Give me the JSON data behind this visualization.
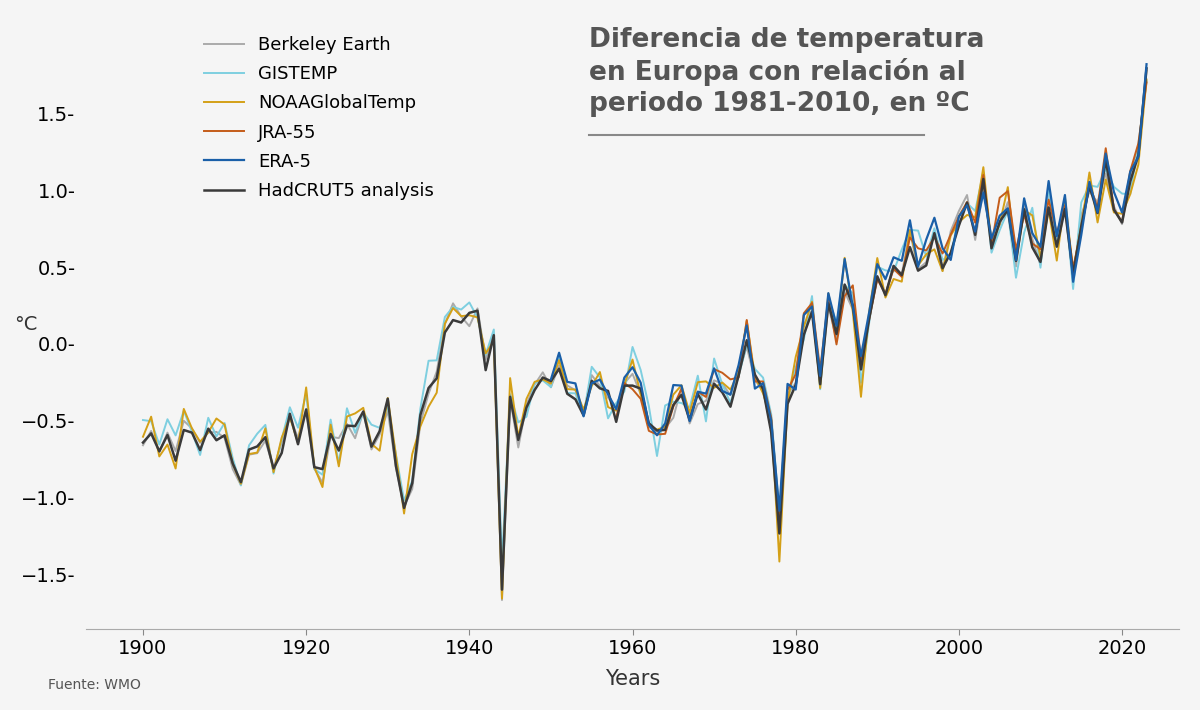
{
  "title_line1": "Diferencia de temperatura",
  "title_line2": "en Europa con relación al",
  "title_line3": "periodo 1981-2010, en ºC",
  "ylabel": "°C",
  "xlabel": "Years",
  "footnote": "Fuente: WMO",
  "ylim": [
    -1.85,
    2.1
  ],
  "xlim": [
    1893,
    2027
  ],
  "yticks": [
    -1.5,
    -1.0,
    -0.5,
    0.0,
    0.5,
    1.0,
    1.5
  ],
  "xticks": [
    1900,
    1920,
    1940,
    1960,
    1980,
    2000,
    2020
  ],
  "series": {
    "HadCRUT5 analysis": {
      "color": "#3a3a3a",
      "lw": 1.8,
      "zorder": 6
    },
    "NOAAGlobalTemp": {
      "color": "#d4a017",
      "lw": 1.4,
      "zorder": 5
    },
    "GISTEMP": {
      "color": "#7ecfe0",
      "lw": 1.4,
      "zorder": 4
    },
    "Berkeley Earth": {
      "color": "#aaaaaa",
      "lw": 1.4,
      "zorder": 3
    },
    "ERA-5": {
      "color": "#1a5fa8",
      "lw": 1.6,
      "zorder": 7
    },
    "JRA-55": {
      "color": "#c45c1a",
      "lw": 1.4,
      "zorder": 5
    }
  },
  "background_color": "#f5f5f5",
  "title_color": "#555555",
  "tick_color": "#333333",
  "title_fontsize": 19,
  "label_fontsize": 14,
  "tick_fontsize": 14,
  "legend_fontsize": 13
}
